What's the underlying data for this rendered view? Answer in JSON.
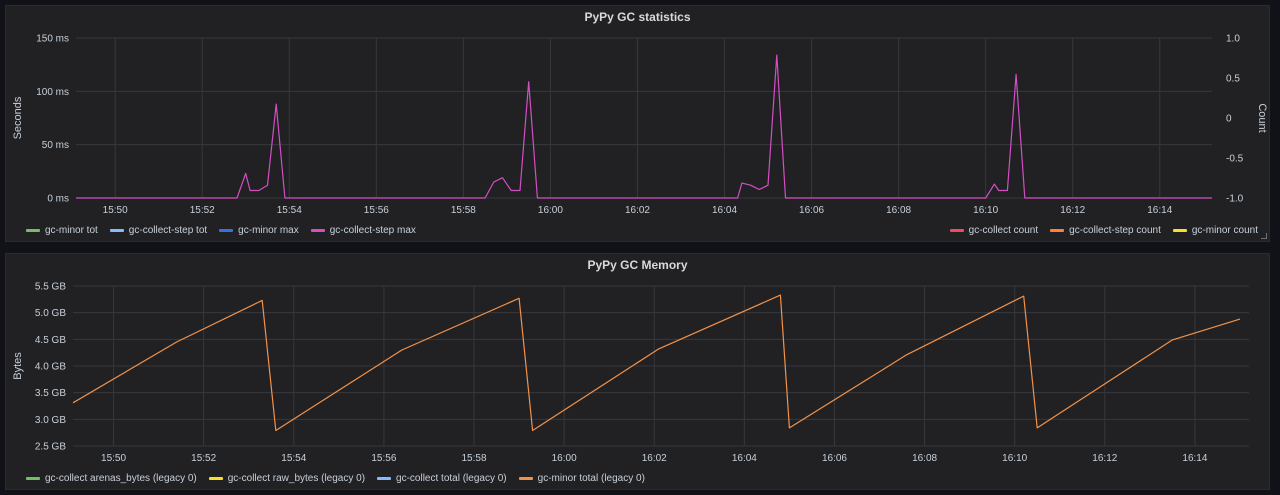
{
  "colors": {
    "grid": "#37383c",
    "tick": "#c7d0d9",
    "purple": "#d24fc4",
    "orange": "#f2924a"
  },
  "chart_data": [
    {
      "type": "line",
      "title": "PyPy GC statistics",
      "ylabel": "Seconds",
      "ylabel_right": "Count",
      "x_ticks": [
        "15:50",
        "15:52",
        "15:54",
        "15:56",
        "15:58",
        "16:00",
        "16:02",
        "16:04",
        "16:06",
        "16:08",
        "16:10",
        "16:12",
        "16:14"
      ],
      "xlim": [
        "15:49.1",
        "16:15.2"
      ],
      "y_ticks": [
        {
          "v": 0,
          "label": "0 ms"
        },
        {
          "v": 50,
          "label": "50 ms"
        },
        {
          "v": 100,
          "label": "100 ms"
        },
        {
          "v": 150,
          "label": "150 ms"
        }
      ],
      "ylim": [
        0,
        150
      ],
      "y2_ticks": [
        {
          "v": -1.0,
          "label": "-1.0"
        },
        {
          "v": -0.5,
          "label": "-0.5"
        },
        {
          "v": 0,
          "label": "0"
        },
        {
          "v": 0.5,
          "label": "0.5"
        },
        {
          "v": 1.0,
          "label": "1.0"
        }
      ],
      "y2lim": [
        -1,
        1
      ],
      "grid": true,
      "legend_left": [
        {
          "name": "gc-minor tot",
          "color": "#73bf69"
        },
        {
          "name": "gc-collect-step tot",
          "color": "#8ab8ff"
        },
        {
          "name": "gc-minor max",
          "color": "#3274d9"
        },
        {
          "name": "gc-collect-step max",
          "color": "#d24fc4"
        }
      ],
      "legend_right": [
        {
          "name": "gc-collect count",
          "color": "#f2495c"
        },
        {
          "name": "gc-collect-step count",
          "color": "#ff7f3f"
        },
        {
          "name": "gc-minor count",
          "color": "#fade2a"
        }
      ],
      "series": [
        {
          "name": "gc-collect-step max",
          "color": "#d24fc4",
          "points": [
            [
              "15:49.1",
              0
            ],
            [
              "15:52.8",
              0
            ],
            [
              "15:53.0",
              23
            ],
            [
              "15:53.1",
              7
            ],
            [
              "15:53.3",
              7
            ],
            [
              "15:53.5",
              12
            ],
            [
              "15:53.7",
              88
            ],
            [
              "15:53.9",
              0
            ],
            [
              "15:58.5",
              0
            ],
            [
              "15:58.7",
              15
            ],
            [
              "15:58.9",
              19
            ],
            [
              "15:59.1",
              7
            ],
            [
              "15:59.3",
              7
            ],
            [
              "15:59.5",
              109
            ],
            [
              "15:59.7",
              0
            ],
            [
              "16:04.3",
              0
            ],
            [
              "16:04.4",
              14
            ],
            [
              "16:04.6",
              12
            ],
            [
              "16:04.8",
              8
            ],
            [
              "16:05.0",
              12
            ],
            [
              "16:05.2",
              134
            ],
            [
              "16:05.4",
              0
            ],
            [
              "16:10.0",
              0
            ],
            [
              "16:10.2",
              13
            ],
            [
              "16:10.3",
              7
            ],
            [
              "16:10.5",
              7
            ],
            [
              "16:10.7",
              116
            ],
            [
              "16:10.9",
              0
            ],
            [
              "16:15.2",
              0
            ]
          ]
        }
      ]
    },
    {
      "type": "line",
      "title": "PyPy GC Memory",
      "ylabel": "Bytes",
      "x_ticks": [
        "15:50",
        "15:52",
        "15:54",
        "15:56",
        "15:58",
        "16:00",
        "16:02",
        "16:04",
        "16:06",
        "16:08",
        "16:10",
        "16:12",
        "16:14"
      ],
      "xlim": [
        "15:49.1",
        "16:15.2"
      ],
      "y_ticks": [
        {
          "v": 2.5,
          "label": "2.5 GB"
        },
        {
          "v": 3.0,
          "label": "3.0 GB"
        },
        {
          "v": 3.5,
          "label": "3.5 GB"
        },
        {
          "v": 4.0,
          "label": "4.0 GB"
        },
        {
          "v": 4.5,
          "label": "4.5 GB"
        },
        {
          "v": 5.0,
          "label": "5.0 GB"
        },
        {
          "v": 5.5,
          "label": "5.5 GB"
        }
      ],
      "ylim": [
        2.5,
        5.5
      ],
      "grid": true,
      "legend_left": [
        {
          "name": "gc-collect arenas_bytes (legacy 0)",
          "color": "#73bf69"
        },
        {
          "name": "gc-collect raw_bytes (legacy 0)",
          "color": "#fade2a"
        },
        {
          "name": "gc-collect total (legacy 0)",
          "color": "#8ab8ff"
        },
        {
          "name": "gc-minor total (legacy 0)",
          "color": "#f2924a"
        }
      ],
      "series": [
        {
          "name": "gc-minor total (legacy 0)",
          "color": "#f2924a",
          "points": [
            [
              "15:49.1",
              3.31
            ],
            [
              "15:51.4",
              4.45
            ],
            [
              "15:53.3",
              5.23
            ],
            [
              "15:53.6",
              2.79
            ],
            [
              "15:56.4",
              4.3
            ],
            [
              "15:59.0",
              5.27
            ],
            [
              "15:59.3",
              2.79
            ],
            [
              "16:02.1",
              4.32
            ],
            [
              "16:04.8",
              5.33
            ],
            [
              "16:05.0",
              2.84
            ],
            [
              "16:07.6",
              4.21
            ],
            [
              "16:10.2",
              5.31
            ],
            [
              "16:10.5",
              2.84
            ],
            [
              "16:13.5",
              4.49
            ],
            [
              "16:15.0",
              4.88
            ]
          ]
        }
      ]
    }
  ]
}
